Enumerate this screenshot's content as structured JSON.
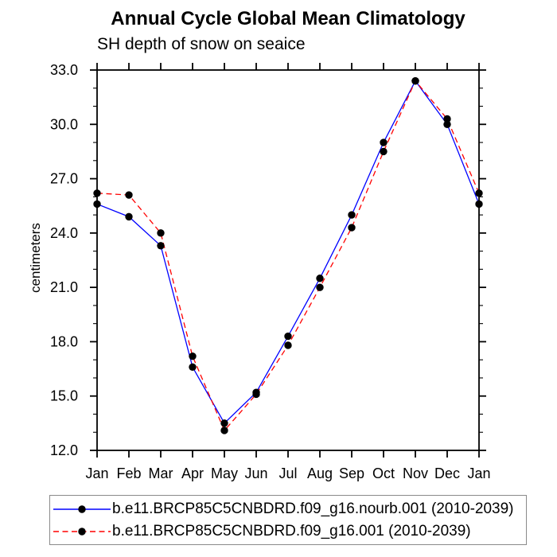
{
  "chart_data": {
    "type": "line",
    "title": "Annual Cycle Global Mean Climatology",
    "subtitle": "SH depth of snow on seaice",
    "ylabel": "centimeters",
    "xlabel": "",
    "categories": [
      "Jan",
      "Feb",
      "Mar",
      "Apr",
      "May",
      "Jun",
      "Jul",
      "Aug",
      "Sep",
      "Oct",
      "Nov",
      "Dec",
      "Jan"
    ],
    "ylim": [
      12.0,
      33.0
    ],
    "ytick_step": 3.0,
    "yminor_step": 1.0,
    "ytick_labels": [
      "12.0",
      "15.0",
      "18.0",
      "21.0",
      "24.0",
      "27.0",
      "30.0",
      "33.0"
    ],
    "grid": "off",
    "legend_position": "bottom",
    "frame_color": "#000000",
    "marker_color": "#000000",
    "series": [
      {
        "name": "b.e11.BRCP85C5CNBDRD.f09_g16.nourb.001 (2010-2039)",
        "color": "#0000ff",
        "style": "solid",
        "marker": "filled-circle",
        "values": [
          25.6,
          24.9,
          23.3,
          16.6,
          13.5,
          15.2,
          18.3,
          21.5,
          25.0,
          29.0,
          32.4,
          30.0,
          25.6
        ]
      },
      {
        "name": "b.e11.BRCP85C5CNBDRD.f09_g16.001 (2010-2039)",
        "color": "#ff0000",
        "style": "dashed",
        "marker": "filled-circle",
        "values": [
          26.2,
          26.1,
          24.0,
          17.2,
          13.1,
          15.1,
          17.8,
          21.0,
          24.3,
          28.5,
          32.4,
          30.3,
          26.2
        ]
      }
    ]
  }
}
